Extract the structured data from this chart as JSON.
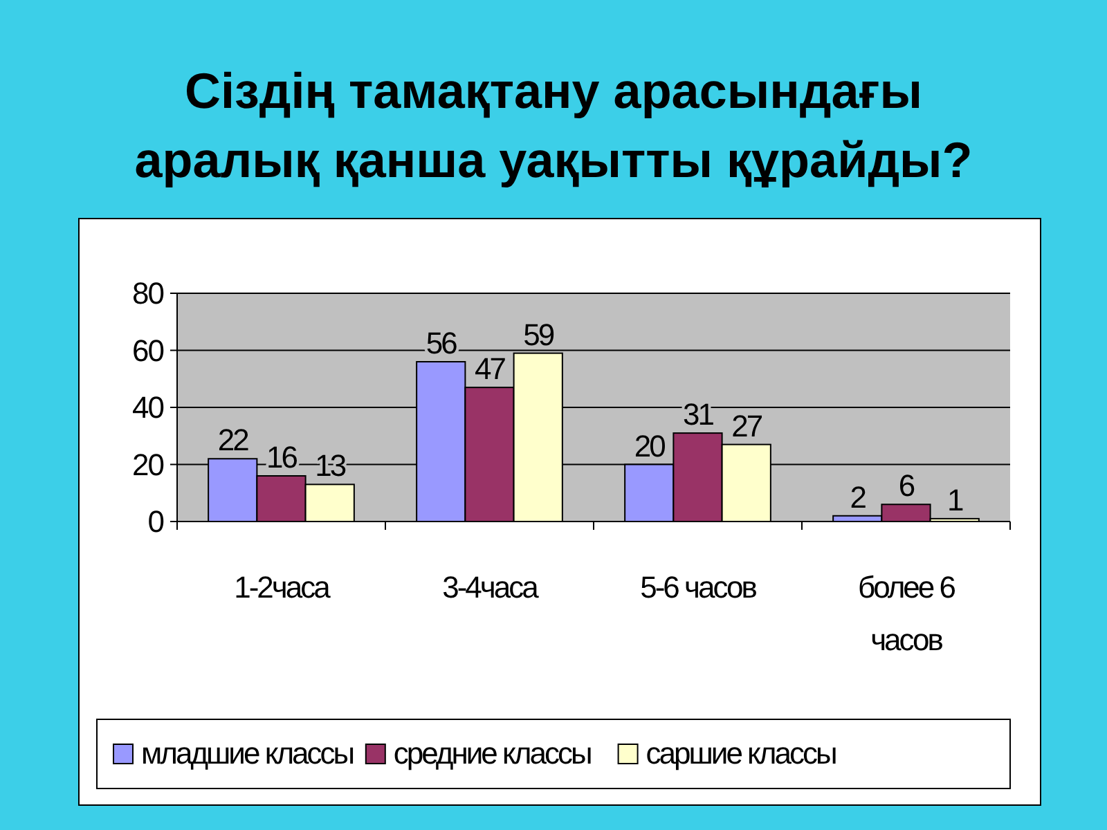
{
  "chart_data": {
    "type": "bar",
    "title": "Сіздің тамақтану арасындағы аралық қанша уақытты құрайды?",
    "categories": [
      "1-2часа",
      "3-4часа",
      "5-6 часов",
      "более 6 часов"
    ],
    "series": [
      {
        "name": "младшие классы",
        "color": "#9999ff",
        "values": [
          22,
          56,
          20,
          2
        ]
      },
      {
        "name": "средние классы",
        "color": "#993366",
        "values": [
          16,
          47,
          31,
          6
        ]
      },
      {
        "name": "саршие классы",
        "color": "#ffffcc",
        "values": [
          13,
          59,
          27,
          1
        ]
      }
    ],
    "ylim": [
      0,
      80
    ],
    "yticks": [
      0,
      20,
      40,
      60,
      80
    ],
    "grid": "y",
    "legend": "bottom",
    "data_labels": true
  }
}
